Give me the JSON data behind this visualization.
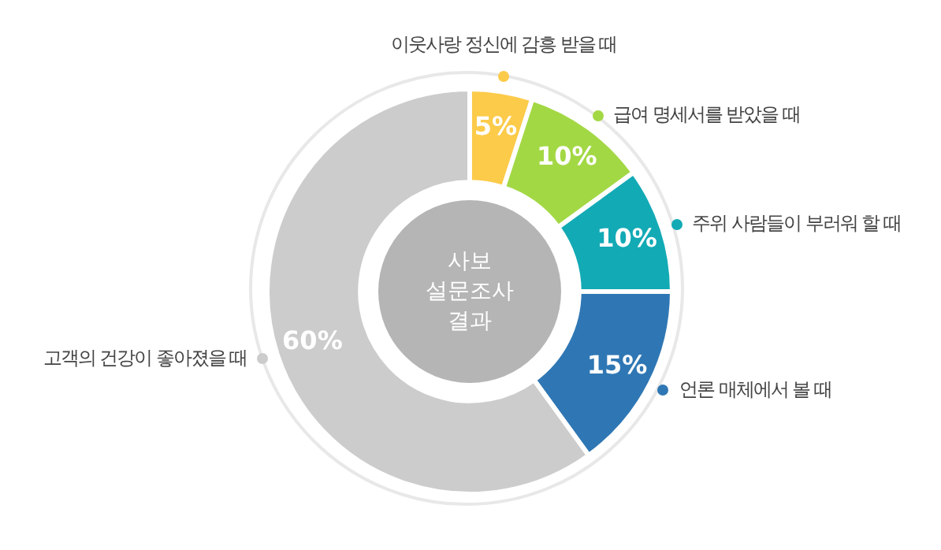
{
  "chart_data": {
    "type": "donut",
    "title": "사보 설문조사 결과",
    "categories": [
      "이웃사랑 정신에 감흥 받을 때",
      "급여 명세서를 받았을 때",
      "주위 사람들이 부러워 할 때",
      "언론 매체에서 볼 때",
      "고객의 건강이 좋아졌을 때"
    ],
    "values": [
      5,
      10,
      10,
      15,
      60
    ],
    "colors": [
      "#fccb4a",
      "#a3d845",
      "#12aab5",
      "#2f77b4",
      "#cccccc"
    ],
    "value_labels": [
      "5%",
      "10%",
      "10%",
      "15%",
      "60%"
    ],
    "legend": "right"
  }
}
